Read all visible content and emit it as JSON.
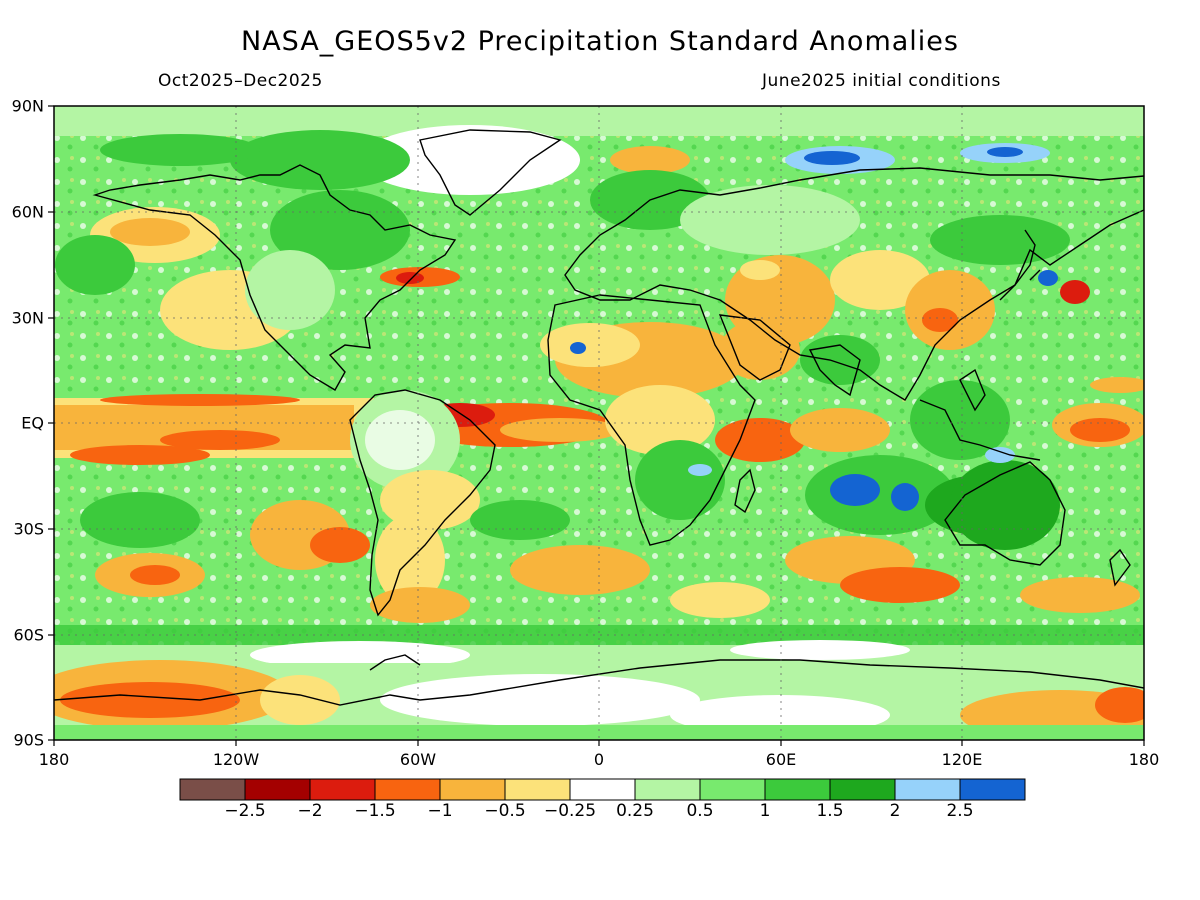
{
  "title": "NASA_GEOS5v2 Precipitation Standard Anomalies",
  "subtitle_left": "Oct2025–Dec2025",
  "subtitle_right": "June2025 initial conditions",
  "lat_labels": [
    "90N",
    "60N",
    "30N",
    "EQ",
    "30S",
    "60S",
    "90S"
  ],
  "lon_labels": [
    "180",
    "120W",
    "60W",
    "0",
    "60E",
    "120E",
    "180"
  ],
  "legend": {
    "colors": [
      "#7a4e48",
      "#a40000",
      "#dc1c0e",
      "#f86410",
      "#f8b43c",
      "#fce27a",
      "#ffffff",
      "#b4f5a4",
      "#78ea6e",
      "#3cca3c",
      "#1ea81e",
      "#96d2fa",
      "#1464d2"
    ],
    "labels": [
      "−2.5",
      "−2",
      "−1.5",
      "−1",
      "−0.5",
      "−0.25",
      "0.25",
      "0.5",
      "1",
      "1.5",
      "2",
      "2.5"
    ]
  }
}
